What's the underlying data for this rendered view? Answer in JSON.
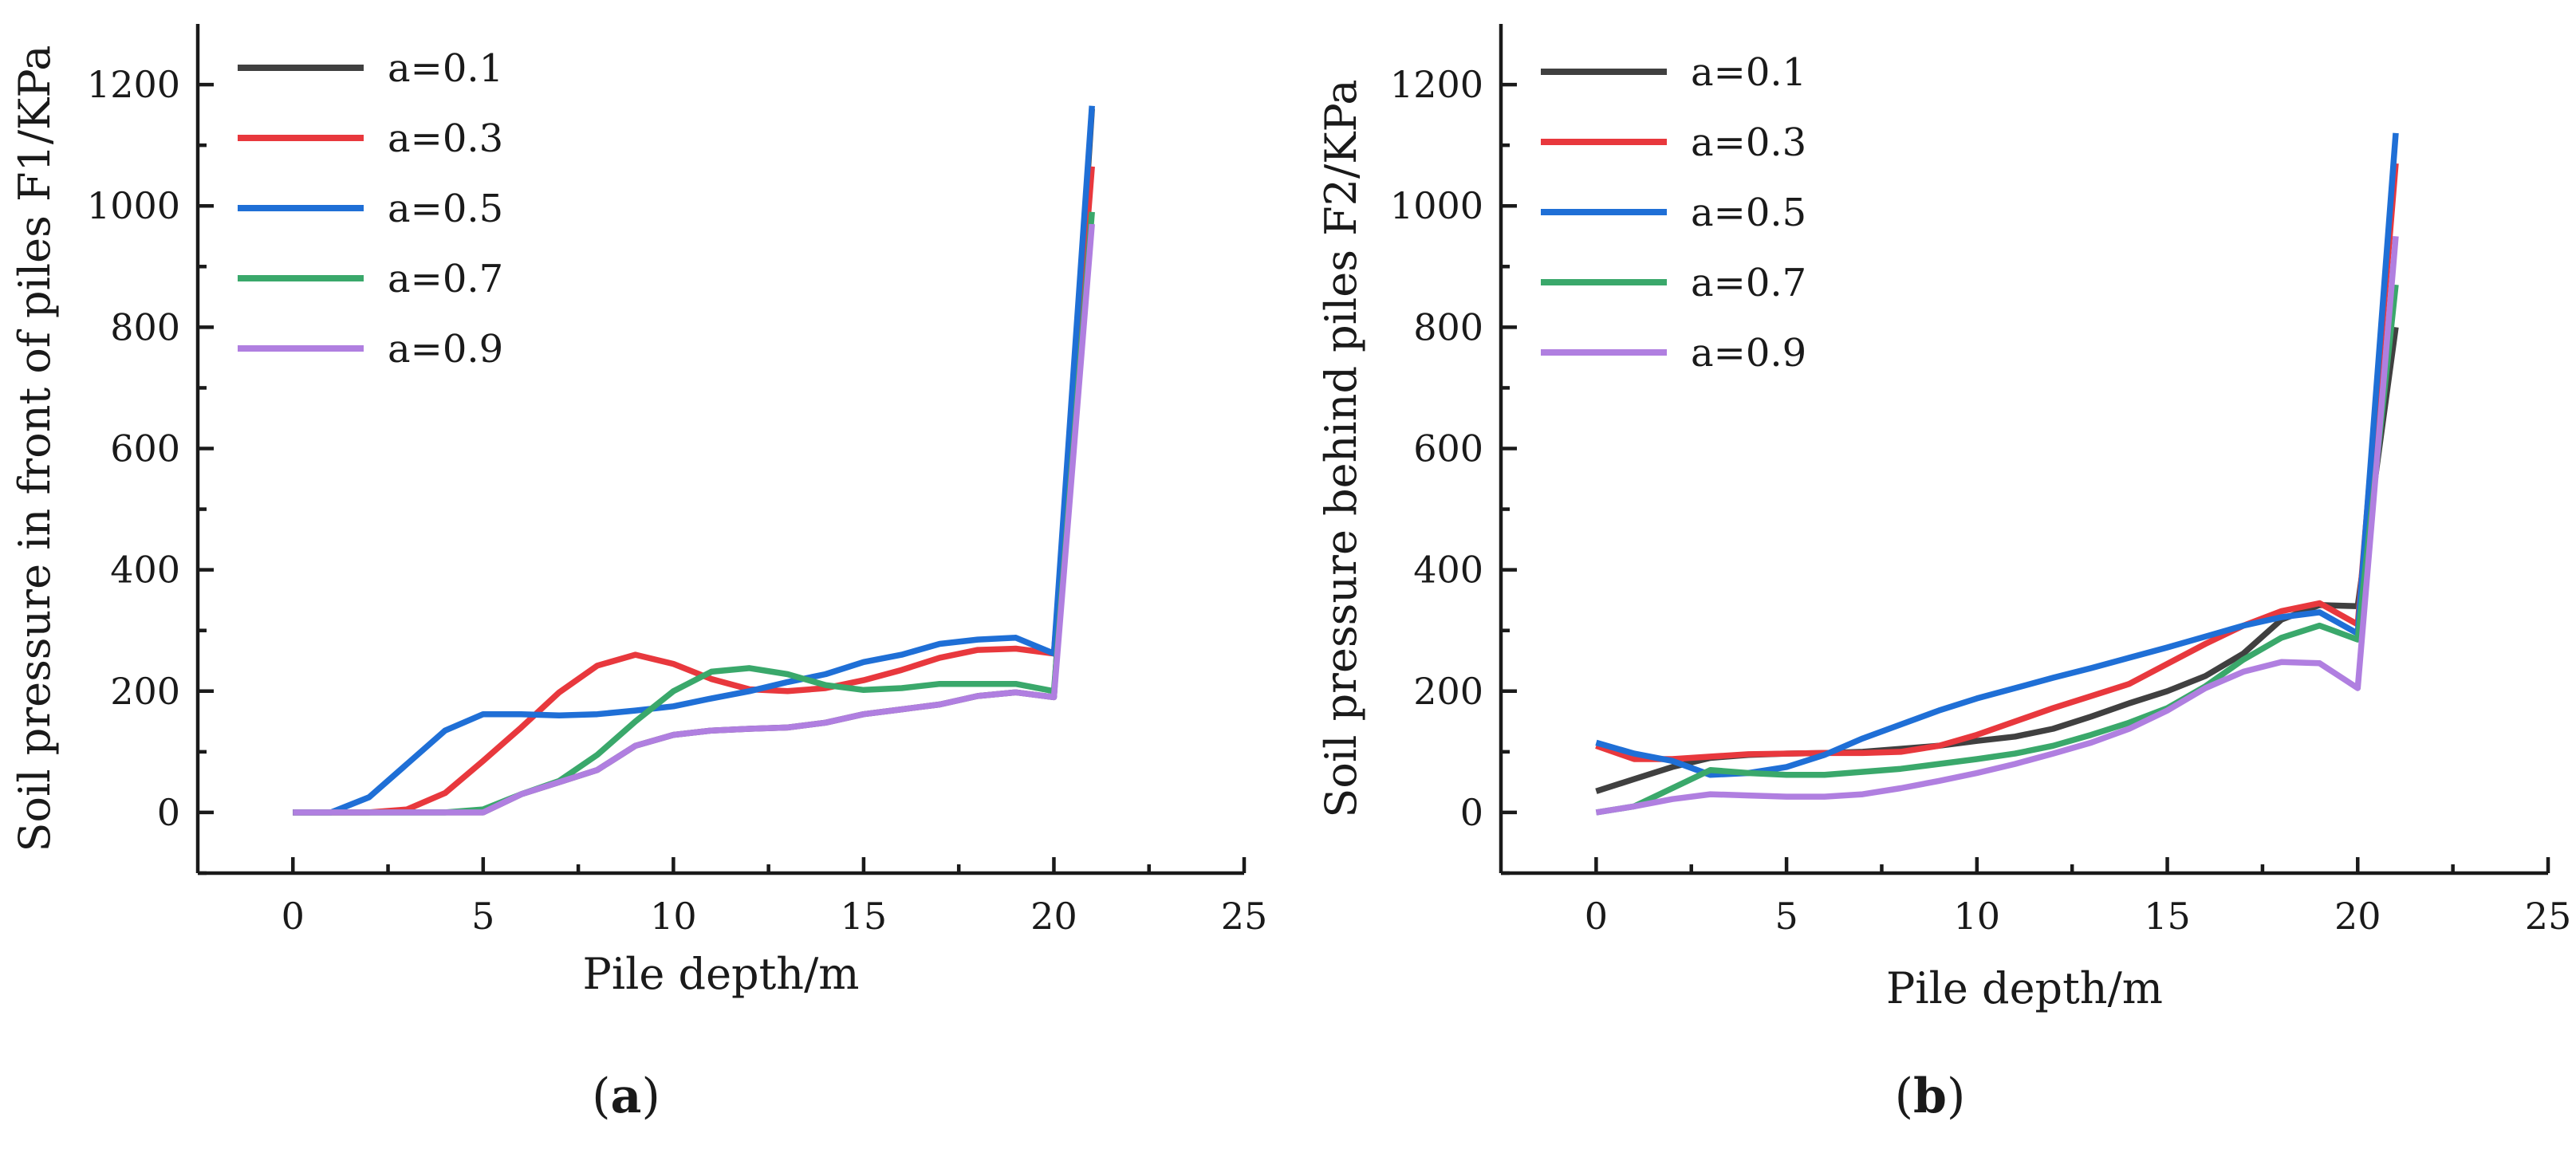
{
  "chart_data": [
    {
      "type": "line",
      "panel_label": {
        "open": "(",
        "letter": "a",
        "close": ")"
      },
      "xlabel": "Pile depth/m",
      "ylabel": "Soil pressure in front of piles F1/KPa",
      "xlim": [
        -2.5,
        25
      ],
      "ylim": [
        -100,
        1300
      ],
      "xticks": [
        0,
        5,
        10,
        15,
        20,
        25
      ],
      "yticks": [
        0,
        200,
        400,
        600,
        800,
        1000,
        1200
      ],
      "xtick_labels": [
        "0",
        "5",
        "10",
        "15",
        "20",
        "25"
      ],
      "ytick_labels": [
        "0",
        "200",
        "400",
        "600",
        "800",
        "1000",
        "1200"
      ],
      "legend_position": "top-left",
      "x": [
        0,
        1,
        2,
        3,
        4,
        5,
        6,
        7,
        8,
        9,
        10,
        11,
        12,
        13,
        14,
        15,
        16,
        17,
        18,
        19,
        20,
        21
      ],
      "series": [
        {
          "name": "a=0.1",
          "color": "#404040",
          "values": [
            0,
            0,
            0,
            0,
            0,
            0,
            30,
            50,
            70,
            110,
            128,
            135,
            138,
            140,
            148,
            162,
            170,
            178,
            192,
            198,
            190,
            1160
          ]
        },
        {
          "name": "a=0.3",
          "color": "#e8383d",
          "values": [
            0,
            0,
            0,
            5,
            32,
            85,
            140,
            198,
            242,
            260,
            245,
            220,
            203,
            200,
            205,
            218,
            235,
            255,
            268,
            270,
            262,
            1065
          ]
        },
        {
          "name": "a=0.5",
          "color": "#1f6fd6",
          "values": [
            0,
            0,
            25,
            80,
            135,
            162,
            162,
            160,
            162,
            168,
            175,
            188,
            200,
            215,
            228,
            248,
            260,
            278,
            285,
            288,
            262,
            1165
          ]
        },
        {
          "name": "a=0.7",
          "color": "#3aa86b",
          "values": [
            0,
            0,
            0,
            0,
            0,
            5,
            30,
            52,
            95,
            150,
            200,
            232,
            238,
            228,
            210,
            202,
            205,
            212,
            212,
            212,
            200,
            990
          ]
        },
        {
          "name": "a=0.9",
          "color": "#b07fe0",
          "values": [
            0,
            0,
            0,
            0,
            0,
            0,
            30,
            50,
            70,
            110,
            128,
            135,
            138,
            140,
            148,
            162,
            170,
            178,
            192,
            198,
            190,
            970
          ]
        }
      ]
    },
    {
      "type": "line",
      "panel_label": {
        "open": "(",
        "letter": "b",
        "close": ")"
      },
      "xlabel": "Pile depth/m",
      "ylabel": "Soil pressure behind piles F2/KPa",
      "xlim": [
        -2.5,
        25
      ],
      "ylim": [
        -100,
        1300
      ],
      "xticks": [
        0,
        5,
        10,
        15,
        20,
        25
      ],
      "yticks": [
        0,
        200,
        400,
        600,
        800,
        1000,
        1200
      ],
      "xtick_labels": [
        "0",
        "5",
        "10",
        "15",
        "20",
        "25"
      ],
      "ytick_labels": [
        "0",
        "200",
        "400",
        "600",
        "800",
        "1000",
        "1200"
      ],
      "legend_position": "top-left",
      "x": [
        0,
        1,
        2,
        3,
        4,
        5,
        6,
        7,
        8,
        9,
        10,
        11,
        12,
        13,
        14,
        15,
        16,
        17,
        18,
        19,
        20,
        21
      ],
      "series": [
        {
          "name": "a=0.1",
          "color": "#404040",
          "values": [
            35,
            55,
            75,
            90,
            95,
            97,
            98,
            100,
            105,
            110,
            118,
            125,
            138,
            158,
            180,
            200,
            225,
            262,
            318,
            342,
            340,
            800
          ]
        },
        {
          "name": "a=0.3",
          "color": "#e8383d",
          "values": [
            110,
            88,
            88,
            92,
            96,
            97,
            98,
            98,
            100,
            110,
            128,
            150,
            172,
            192,
            212,
            245,
            278,
            308,
            332,
            345,
            310,
            1070
          ]
        },
        {
          "name": "a=0.5",
          "color": "#1f6fd6",
          "values": [
            115,
            97,
            85,
            62,
            65,
            75,
            95,
            122,
            145,
            168,
            188,
            205,
            222,
            238,
            255,
            272,
            290,
            308,
            322,
            330,
            295,
            1120
          ]
        },
        {
          "name": "a=0.7",
          "color": "#3aa86b",
          "values": [
            0,
            10,
            40,
            70,
            65,
            62,
            62,
            67,
            72,
            80,
            88,
            97,
            110,
            128,
            148,
            172,
            208,
            252,
            288,
            308,
            285,
            870
          ]
        },
        {
          "name": "a=0.9",
          "color": "#b07fe0",
          "values": [
            0,
            10,
            22,
            30,
            28,
            26,
            26,
            30,
            40,
            52,
            65,
            80,
            97,
            115,
            138,
            168,
            205,
            232,
            248,
            246,
            205,
            950
          ]
        }
      ]
    }
  ]
}
